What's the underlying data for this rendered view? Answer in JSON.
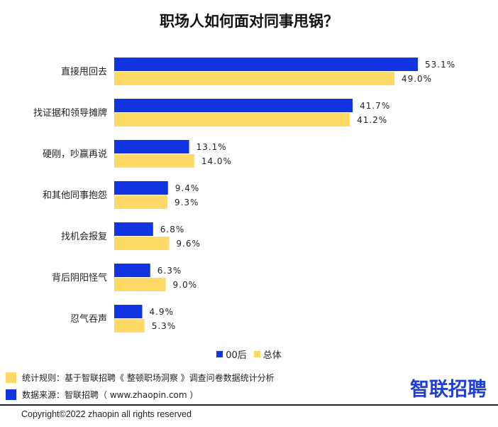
{
  "title": "职场人如何面对同事甩锅？",
  "colors": {
    "series_00": "#1234e0",
    "series_all": "#ffd966",
    "label_text": "#222222",
    "logo": "#1f3fd8"
  },
  "chart_data": {
    "type": "bar",
    "orientation": "horizontal",
    "title": "职场人如何面对同事甩锅？",
    "categories": [
      "直接甩回去",
      "找证据和领导摊牌",
      "硬刚，吵赢再说",
      "和其他同事抱怨",
      "找机会报复",
      "背后阴阳怪气",
      "忍气吞声"
    ],
    "series": [
      {
        "name": "00后",
        "values": [
          53.1,
          41.7,
          13.1,
          9.4,
          6.8,
          6.3,
          4.9
        ],
        "labels": [
          "53.1%",
          "41.7%",
          "13.1%",
          "9.4%",
          "6.8%",
          "6.3%",
          "4.9%"
        ]
      },
      {
        "name": "总体",
        "values": [
          49.0,
          41.2,
          14.0,
          9.3,
          9.6,
          9.0,
          5.3
        ],
        "labels": [
          "49.0%",
          "41.2%",
          "14.0%",
          "9.3%",
          "9.6%",
          "9.0%",
          "5.3%"
        ]
      }
    ],
    "unit": "%",
    "xlim": [
      0,
      60
    ],
    "legend_position": "bottom",
    "grid": false
  },
  "legend": {
    "items": [
      {
        "label": "00后",
        "color": "#1234e0"
      },
      {
        "label": "总体",
        "color": "#ffd966"
      }
    ]
  },
  "notes": [
    {
      "text": "统计规则：基于智联招聘《 整顿职场洞察 》调查问卷数据统计分析",
      "color": "#ffd966"
    },
    {
      "text": "数据来源：智联招聘（ www.zhaopin.com ）",
      "color": "#1234e0"
    }
  ],
  "logo": {
    "text": "智联招聘",
    "icon": "zhaopin-logo-mark"
  },
  "copyright": "Copyright©2022 zhaopin all rights reserved"
}
